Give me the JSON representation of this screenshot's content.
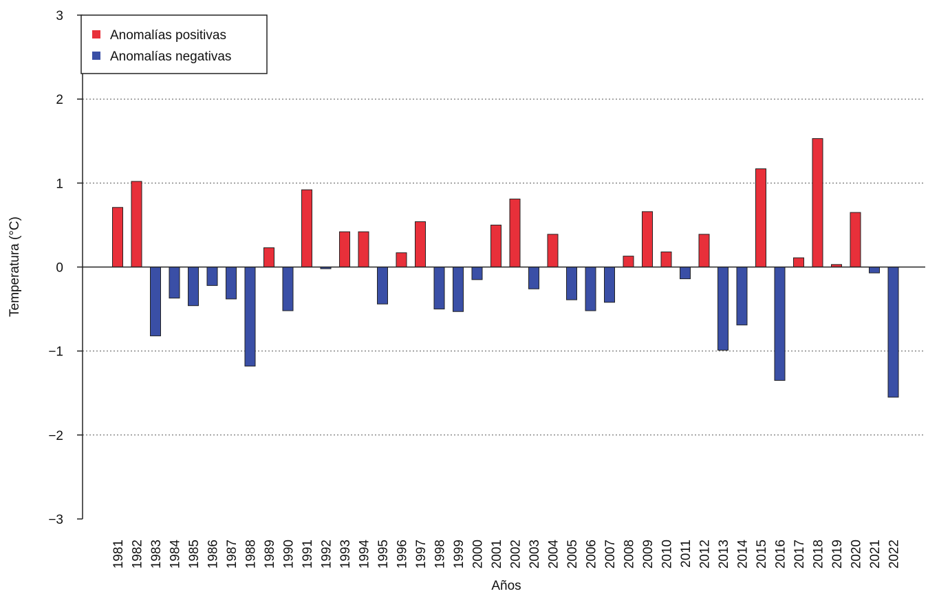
{
  "chart_data": {
    "type": "bar",
    "x_label": "Años",
    "y_label": "Temperatura (°C)",
    "categories": [
      "1981",
      "1982",
      "1983",
      "1984",
      "1985",
      "1986",
      "1987",
      "1988",
      "1989",
      "1990",
      "1991",
      "1992",
      "1993",
      "1994",
      "1995",
      "1996",
      "1997",
      "1998",
      "1999",
      "2000",
      "2001",
      "2002",
      "2003",
      "2004",
      "2005",
      "2006",
      "2007",
      "2008",
      "2009",
      "2010",
      "2011",
      "2012",
      "2013",
      "2014",
      "2015",
      "2016",
      "2017",
      "2018",
      "2019",
      "2020",
      "2021",
      "2022"
    ],
    "series": [
      {
        "name": "Anomalías positivas",
        "color": "#e8303a",
        "values": [
          0.71,
          1.02,
          null,
          null,
          null,
          null,
          null,
          null,
          0.23,
          null,
          0.92,
          null,
          0.42,
          0.42,
          null,
          0.17,
          0.54,
          null,
          null,
          null,
          0.5,
          0.81,
          null,
          0.39,
          null,
          null,
          null,
          0.13,
          0.66,
          0.18,
          null,
          0.39,
          null,
          null,
          1.17,
          null,
          0.11,
          1.53,
          0.03,
          0.65,
          null,
          null
        ]
      },
      {
        "name": "Anomalías negativas",
        "color": "#3a4fa6",
        "values": [
          null,
          null,
          -0.82,
          -0.37,
          -0.46,
          -0.22,
          -0.38,
          -1.18,
          null,
          -0.52,
          null,
          -0.02,
          null,
          null,
          -0.44,
          null,
          null,
          -0.5,
          -0.53,
          -0.15,
          null,
          null,
          -0.26,
          null,
          -0.39,
          -0.52,
          -0.42,
          null,
          null,
          null,
          -0.14,
          null,
          -0.99,
          -0.69,
          null,
          -1.35,
          null,
          null,
          null,
          null,
          -0.07,
          -1.55
        ]
      }
    ],
    "ylim": [
      -3,
      3
    ],
    "yticks": [
      {
        "value": -3,
        "label": "−3"
      },
      {
        "value": -2,
        "label": "−2"
      },
      {
        "value": -1,
        "label": "−1"
      },
      0,
      1,
      2,
      3
    ],
    "grid": true,
    "legend": "top-left"
  }
}
